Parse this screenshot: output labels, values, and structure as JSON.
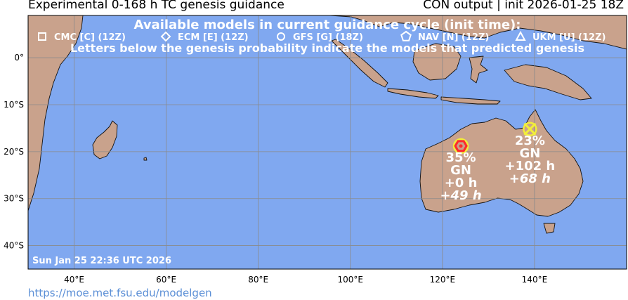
{
  "header": {
    "title_left": "Experimental 0-168 h TC genesis guidance",
    "title_right": "CON output | init 2026-01-25 18Z"
  },
  "legend": {
    "heading": "Available models in current guidance cycle (init time):",
    "models": [
      {
        "label": "CMC [C] (12Z)",
        "symbol": "square"
      },
      {
        "label": "ECM [E] (12Z)",
        "symbol": "diamond"
      },
      {
        "label": "GFS [G] (18Z)",
        "symbol": "circle"
      },
      {
        "label": "NAV [N] (12Z)",
        "symbol": "pentagon"
      },
      {
        "label": "UKM [U] (12Z)",
        "symbol": "triangle"
      }
    ],
    "note": "Letters below the genesis probability indicate the models that predicted genesis"
  },
  "map": {
    "lat_ticks": [
      "0°",
      "10°S",
      "20°S",
      "30°S",
      "40°S"
    ],
    "lon_ticks": [
      "40°E",
      "60°E",
      "80°E",
      "100°E",
      "120°E",
      "140°E"
    ],
    "lat_values": [
      0,
      -10,
      -20,
      -30,
      -40
    ],
    "lon_values": [
      40,
      60,
      80,
      100,
      120,
      140
    ],
    "extent": {
      "lon_min": 30,
      "lon_max": 160,
      "lat_min": -45,
      "lat_max": 9
    },
    "ocean_color": "#80a8f0",
    "land_color": "#c9a28c",
    "timestamp": "Sun Jan 25 22:36 UTC 2026"
  },
  "genesis_points": [
    {
      "lon": 124,
      "lat": -18.8,
      "probability": "35%",
      "models": "GN",
      "lead_first": "+0 h",
      "lead_mean": "+49 h",
      "marker_color": "#ff2a2a",
      "marker": "hexagon"
    },
    {
      "lon": 139,
      "lat": -15.2,
      "probability": "23%",
      "models": "GN",
      "lead_first": "+102 h",
      "lead_mean": "+68 h",
      "marker_color": "#f2ee3a",
      "marker": "x-circle"
    }
  ],
  "footer": {
    "url": "https://moe.met.fsu.edu/modelgen"
  }
}
